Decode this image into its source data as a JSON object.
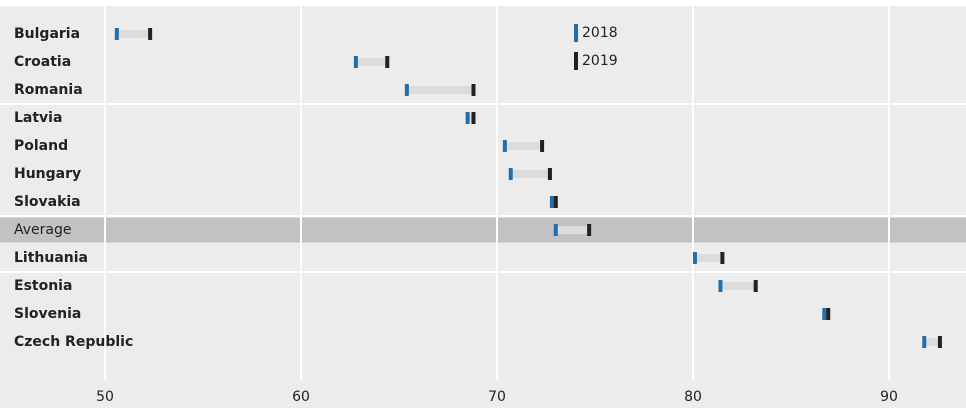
{
  "chart_data": {
    "type": "dumbbell",
    "categories": [
      "Bulgaria",
      "Croatia",
      "Romania",
      "Latvia",
      "Poland",
      "Hungary",
      "Slovakia",
      "Average",
      "Lithuania",
      "Estonia",
      "Slovenia",
      "Czech Republic"
    ],
    "series": [
      {
        "name": "2018",
        "color": "#1f6fae",
        "values": [
          50.6,
          62.8,
          65.4,
          68.5,
          70.4,
          70.7,
          72.8,
          73.0,
          80.1,
          81.4,
          86.7,
          91.8
        ]
      },
      {
        "name": "2019",
        "color": "#222222",
        "values": [
          52.3,
          64.4,
          68.8,
          68.8,
          72.3,
          72.7,
          73.0,
          74.7,
          81.5,
          83.2,
          86.9,
          92.6
        ]
      }
    ],
    "highlight": "Average",
    "xlim": [
      44.64,
      93.93
    ],
    "xticks": [
      50,
      60,
      70,
      80,
      90
    ],
    "grid": true
  }
}
